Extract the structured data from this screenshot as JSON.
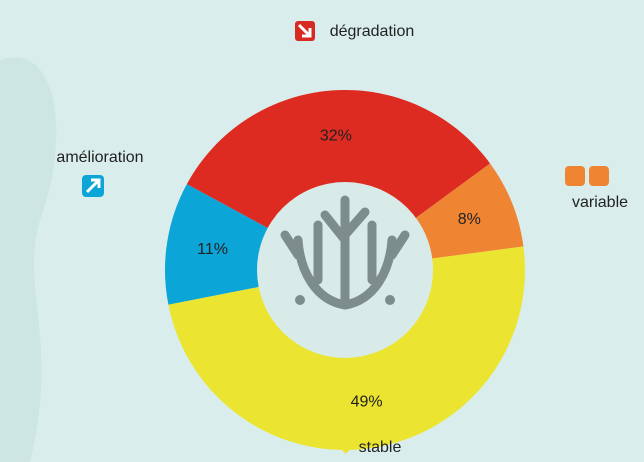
{
  "chart_data": {
    "type": "donut",
    "categories": [
      "dégradation",
      "variable",
      "stable",
      "amélioration"
    ],
    "values": [
      32,
      8,
      49,
      11
    ],
    "value_labels": [
      "32%",
      "8%",
      "49%",
      "11%"
    ],
    "colors": [
      "#dd2b22",
      "#ef8532",
      "#ebe531",
      "#0ba5d7"
    ]
  }
}
